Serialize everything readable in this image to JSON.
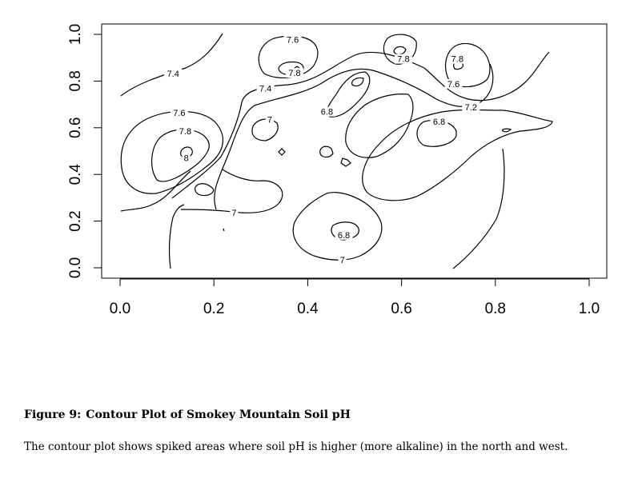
{
  "chart_data": {
    "type": "contour",
    "xlim": [
      0.0,
      1.0
    ],
    "ylim": [
      0.0,
      1.0
    ],
    "x_ticks": [
      "0.0",
      "0.2",
      "0.4",
      "0.6",
      "0.8",
      "1.0"
    ],
    "y_ticks": [
      "0.0",
      "0.2",
      "0.4",
      "0.6",
      "0.8",
      "1.0"
    ],
    "grid": false,
    "contour_labels": [
      {
        "text": "7.6",
        "x": 0.368,
        "y": 0.977
      },
      {
        "text": "7.8",
        "x": 0.372,
        "y": 0.835
      },
      {
        "text": "7.4",
        "x": 0.113,
        "y": 0.832
      },
      {
        "text": "7.4",
        "x": 0.31,
        "y": 0.769
      },
      {
        "text": "6.8",
        "x": 0.441,
        "y": 0.669
      },
      {
        "text": "7.6",
        "x": 0.126,
        "y": 0.665
      },
      {
        "text": "7",
        "x": 0.319,
        "y": 0.636
      },
      {
        "text": "6.8",
        "x": 0.68,
        "y": 0.626
      },
      {
        "text": "7.8",
        "x": 0.139,
        "y": 0.586
      },
      {
        "text": "8",
        "x": 0.141,
        "y": 0.471
      },
      {
        "text": "7.8",
        "x": 0.604,
        "y": 0.895
      },
      {
        "text": "7.8",
        "x": 0.719,
        "y": 0.895
      },
      {
        "text": "7.6",
        "x": 0.711,
        "y": 0.788
      },
      {
        "text": "7.2",
        "x": 0.748,
        "y": 0.688
      },
      {
        "text": "7",
        "x": 0.243,
        "y": 0.236
      },
      {
        "text": "6.8",
        "x": 0.477,
        "y": 0.141
      },
      {
        "text": "7",
        "x": 0.474,
        "y": 0.034
      }
    ]
  },
  "figure": {
    "number": "Figure 9:",
    "title": "Contour Plot of Smokey Mountain Soil pH",
    "description": "The contour plot shows spiked areas where soil pH is higher (more alkaline) in the north and west."
  }
}
